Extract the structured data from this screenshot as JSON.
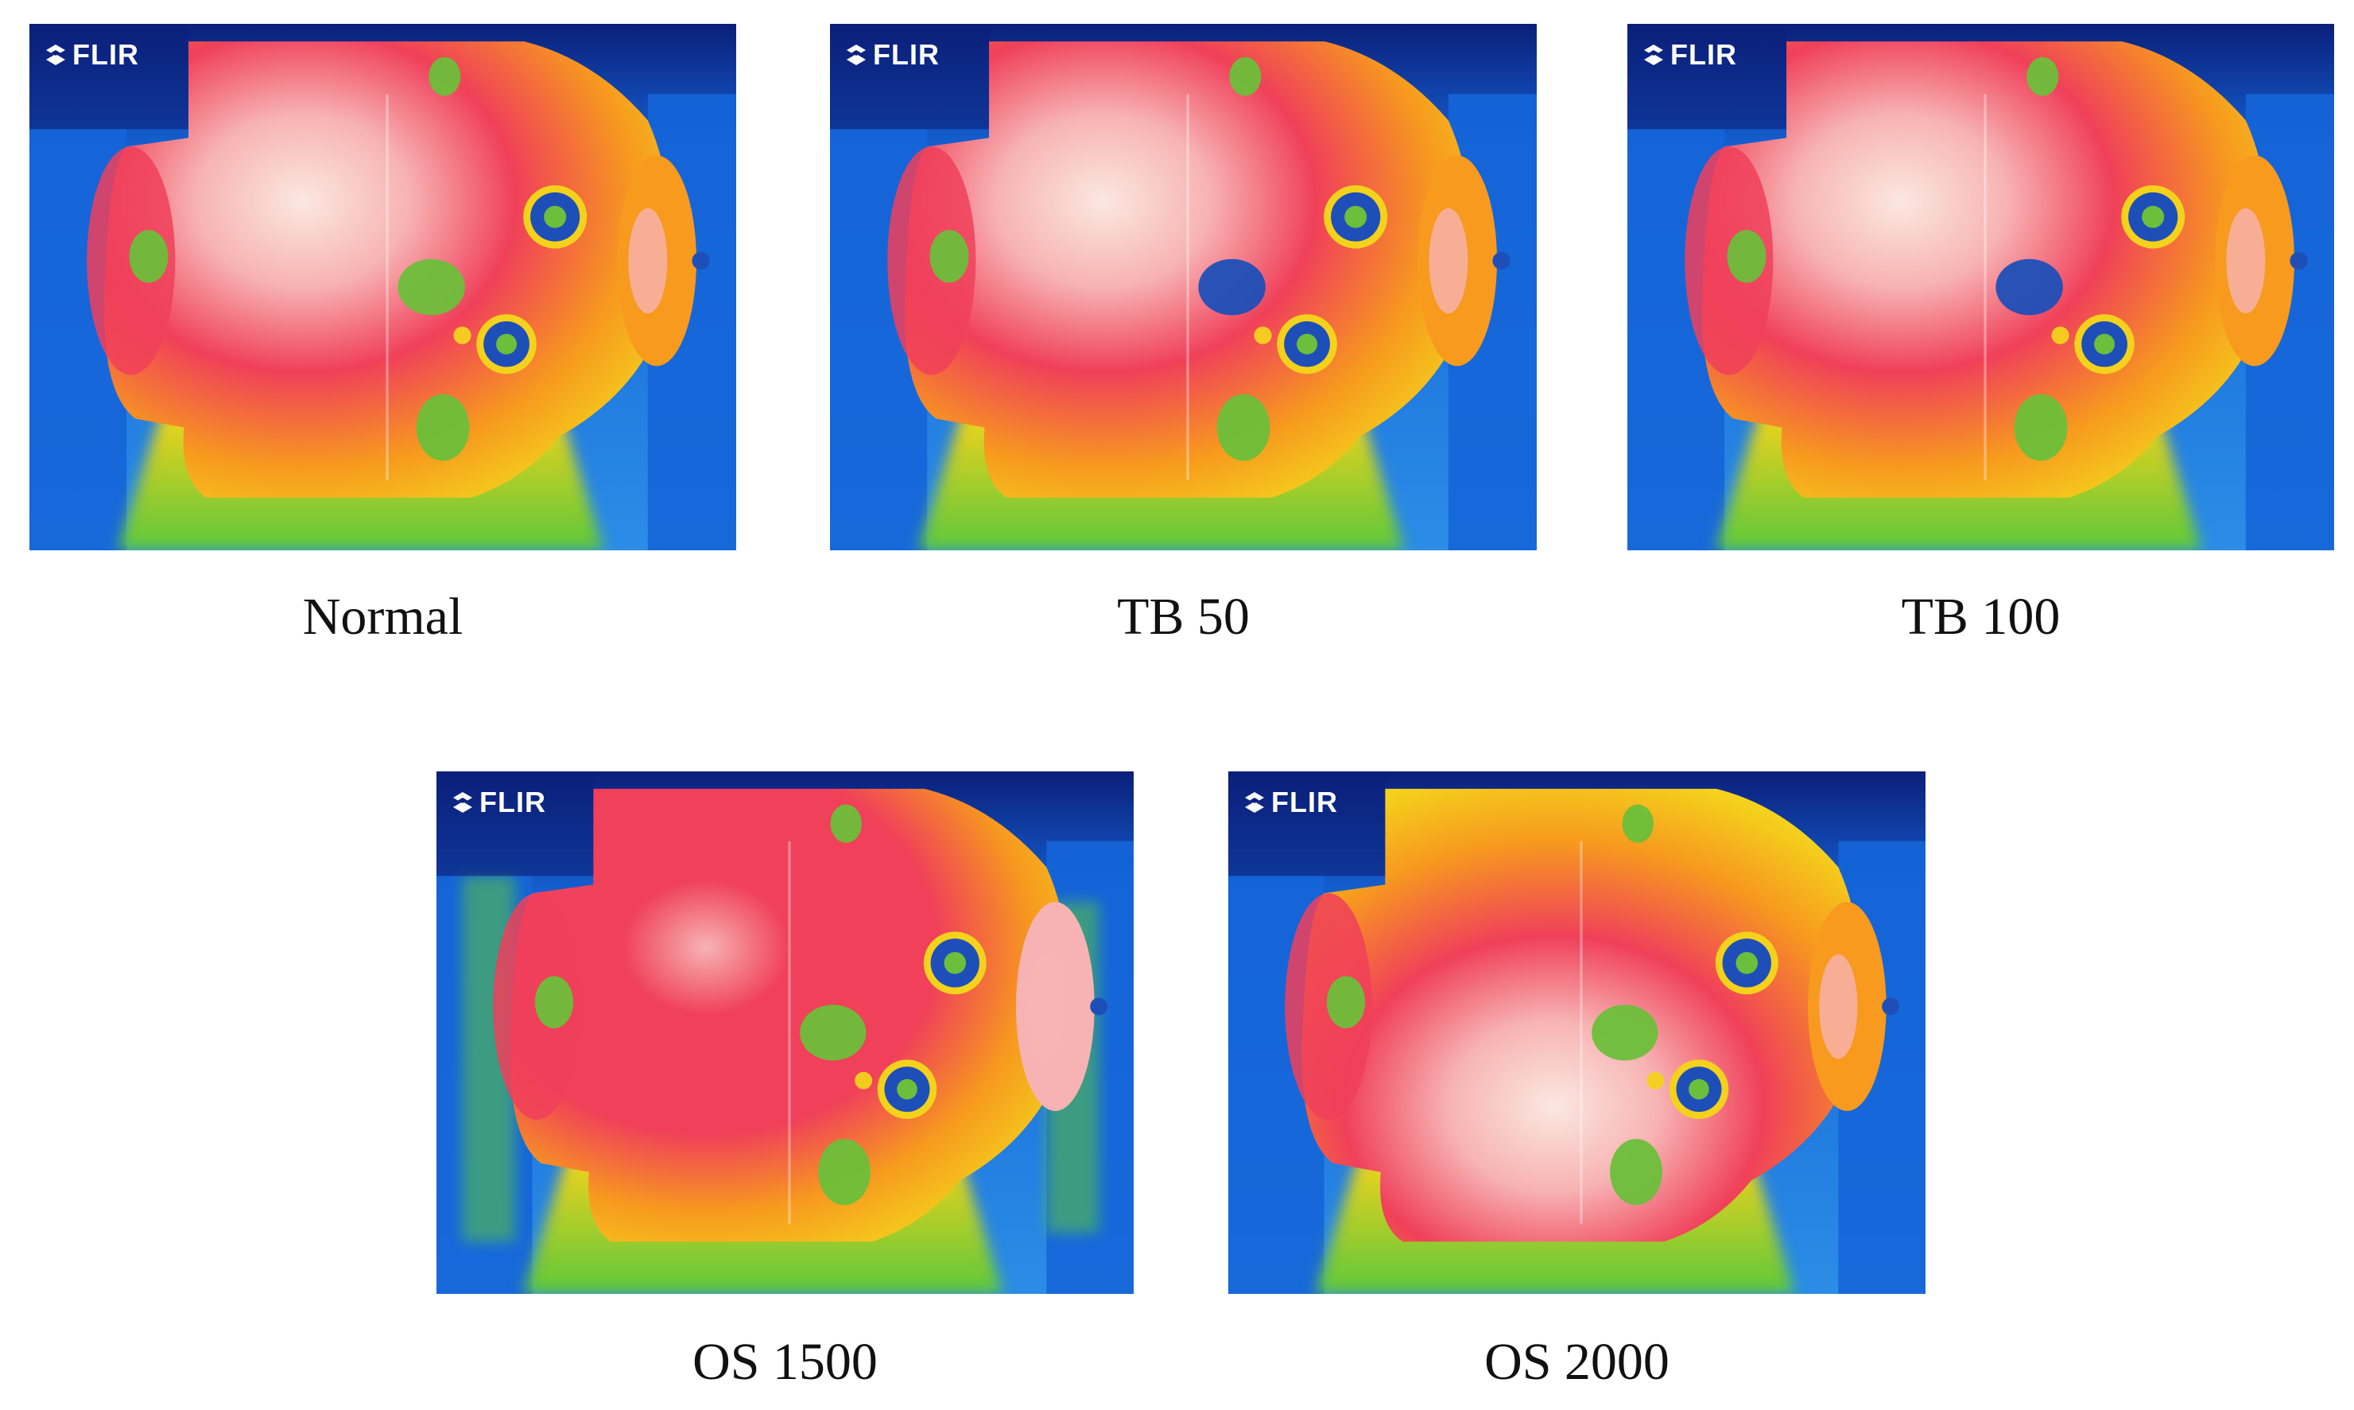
{
  "figure": {
    "panels": [
      {
        "caption": "Normal",
        "camera_logo": "FLIR",
        "variant": "normal"
      },
      {
        "caption": "TB 50",
        "camera_logo": "FLIR",
        "variant": "tb"
      },
      {
        "caption": "TB 100",
        "camera_logo": "FLIR",
        "variant": "tb"
      },
      {
        "caption": "OS 1500",
        "camera_logo": "FLIR",
        "variant": "os1500"
      },
      {
        "caption": "OS 2000",
        "camera_logo": "FLIR",
        "variant": "os2000"
      }
    ],
    "palette": {
      "background_dark": "#0b1f7a",
      "cool_blue": "#1565d8",
      "mid_blue": "#2b8de6",
      "green": "#5cc83a",
      "yellow": "#f4d21c",
      "orange": "#f79a1e",
      "red": "#f0405a",
      "hot_pink": "#f7b3b3",
      "hottest": "#fbe8e0",
      "spot_green": "#6bbf3a",
      "spot_blue": "#1e4fb8"
    }
  }
}
